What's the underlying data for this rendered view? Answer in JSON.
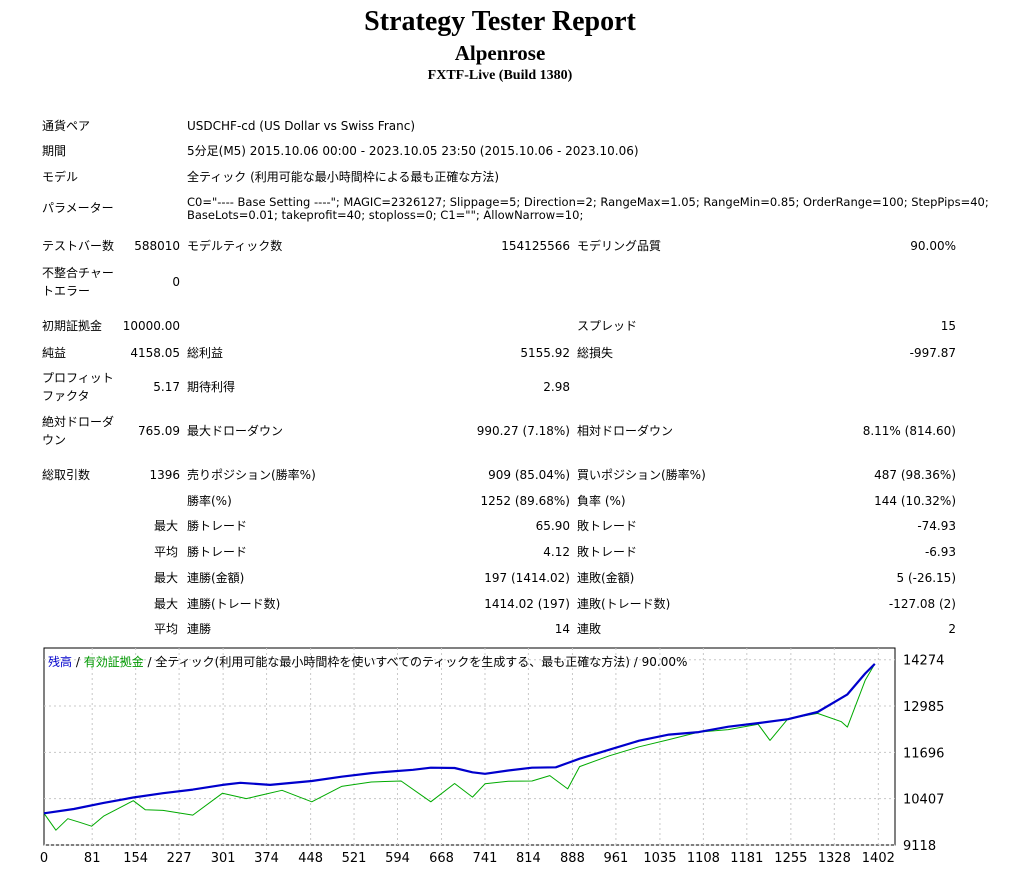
{
  "header": {
    "title": "Strategy Tester Report",
    "subtitle": "Alpenrose",
    "build": "FXTF-Live (Build 1380)"
  },
  "info": {
    "symbol_label": "通貨ペア",
    "symbol_value": "USDCHF-cd (US Dollar vs Swiss Franc)",
    "period_label": "期間",
    "period_value": "5分足(M5) 2015.10.06 00:00 - 2023.10.05 23:50 (2015.10.06 - 2023.10.06)",
    "model_label": "モデル",
    "model_value": "全ティック (利用可能な最小時間枠による最も正確な方法)",
    "params_label": "パラメーター",
    "params_line1": "C0=\"---- Base Setting ----\"; MAGIC=2326127; Slippage=5; Direction=2; RangeMax=1.05; RangeMin=0.85; OrderRange=100; StepPips=40;",
    "params_line2": "BaseLots=0.01; takeprofit=40; stoploss=0; C1=\"\"; AllowNarrow=10;"
  },
  "stats": {
    "bars_label": "テストバー数",
    "bars_value": "588010",
    "ticks_label": "モデルティック数",
    "ticks_value": "154125566",
    "quality_label": "モデリング品質",
    "quality_value": "90.00%",
    "mismatch_label": "不整合チャートエラー",
    "mismatch_value": "0",
    "deposit_label": "初期証拠金",
    "deposit_value": "10000.00",
    "spread_label": "スプレッド",
    "spread_value": "15",
    "net_label": "純益",
    "net_value": "4158.05",
    "gross_profit_label": "総利益",
    "gross_profit_value": "5155.92",
    "gross_loss_label": "総損失",
    "gross_loss_value": "-997.87",
    "pf_label": "プロフィットファクタ",
    "pf_value": "5.17",
    "expected_label": "期待利得",
    "expected_value": "2.98",
    "abs_dd_label": "絶対ドローダウン",
    "abs_dd_value": "765.09",
    "max_dd_label": "最大ドローダウン",
    "max_dd_value": "990.27 (7.18%)",
    "rel_dd_label": "相対ドローダウン",
    "rel_dd_value": "8.11% (814.60)",
    "total_label": "総取引数",
    "total_value": "1396",
    "short_label": "売りポジション(勝率%)",
    "short_value": "909 (85.04%)",
    "long_label": "買いポジション(勝率%)",
    "long_value": "487 (98.36%)",
    "win_rate_label": "勝率(%)",
    "win_rate_value": "1252 (89.68%)",
    "loss_rate_label": "負率 (%)",
    "loss_rate_value": "144 (10.32%)",
    "max_label": "最大",
    "avg_label": "平均",
    "win_trade_label": "勝トレード",
    "loss_trade_label": "敗トレード",
    "largest_win_value": "65.90",
    "largest_loss_value": "-74.93",
    "avg_win_value": "4.12",
    "avg_loss_value": "-6.93",
    "consec_win_money_label": "連勝(金額)",
    "consec_win_money_value": "197 (1414.02)",
    "consec_loss_money_label": "連敗(金額)",
    "consec_loss_money_value": "5 (-26.15)",
    "consec_win_count_label": "連勝(トレード数)",
    "consec_win_count_value": "1414.02 (197)",
    "consec_loss_count_label": "連敗(トレード数)",
    "consec_loss_count_value": "-127.08 (2)",
    "avg_consec_win_label": "連勝",
    "avg_consec_win_value": "14",
    "avg_consec_loss_label": "連敗",
    "avg_consec_loss_value": "2"
  },
  "chart_legend": {
    "balance": "残高",
    "sep": " / ",
    "equity": "有効証拠金",
    "rest": " / 全ティック(利用可能な最小時間枠を使いすべてのティックを生成する、最も正確な方法) / 90.00%"
  },
  "chart_data": {
    "type": "line",
    "x_ticks": [
      0,
      81,
      154,
      227,
      301,
      374,
      448,
      521,
      594,
      668,
      741,
      814,
      888,
      961,
      1035,
      1108,
      1181,
      1255,
      1328,
      1402
    ],
    "y_ticks": [
      14274,
      12985,
      11696,
      10407,
      9118
    ],
    "xlim": [
      0,
      1430
    ],
    "ylim": [
      9118,
      14600
    ],
    "colors": {
      "balance": "#0000cc",
      "equity": "#00aa00",
      "grid": "#c8c8c8"
    },
    "series": [
      {
        "name": "残高",
        "x": [
          0,
          50,
          100,
          150,
          200,
          250,
          300,
          330,
          380,
          450,
          500,
          550,
          580,
          620,
          650,
          690,
          720,
          741,
          780,
          820,
          860,
          880,
          900,
          950,
          1000,
          1050,
          1100,
          1150,
          1200,
          1250,
          1300,
          1350,
          1380,
          1396
        ],
        "y": [
          10000,
          10120,
          10290,
          10440,
          10560,
          10660,
          10790,
          10850,
          10790,
          10900,
          11020,
          11120,
          11160,
          11210,
          11270,
          11260,
          11140,
          11100,
          11190,
          11270,
          11280,
          11400,
          11520,
          11770,
          12020,
          12190,
          12260,
          12410,
          12510,
          12620,
          12820,
          13310,
          13890,
          14158
        ]
      },
      {
        "name": "有効証拠金",
        "x": [
          0,
          20,
          40,
          60,
          80,
          100,
          150,
          170,
          200,
          250,
          300,
          340,
          400,
          450,
          500,
          550,
          600,
          650,
          690,
          720,
          741,
          780,
          820,
          850,
          880,
          900,
          950,
          1000,
          1050,
          1100,
          1150,
          1200,
          1220,
          1250,
          1300,
          1340,
          1350,
          1380,
          1396
        ],
        "y": [
          10000,
          9530,
          9850,
          9750,
          9640,
          9920,
          10350,
          10100,
          10080,
          9950,
          10560,
          10410,
          10640,
          10320,
          10750,
          10870,
          10900,
          10320,
          10830,
          10450,
          10820,
          10890,
          10900,
          11050,
          10680,
          11300,
          11600,
          11850,
          12050,
          12260,
          12330,
          12480,
          12030,
          12630,
          12780,
          12550,
          12400,
          13700,
          14158
        ]
      }
    ]
  }
}
